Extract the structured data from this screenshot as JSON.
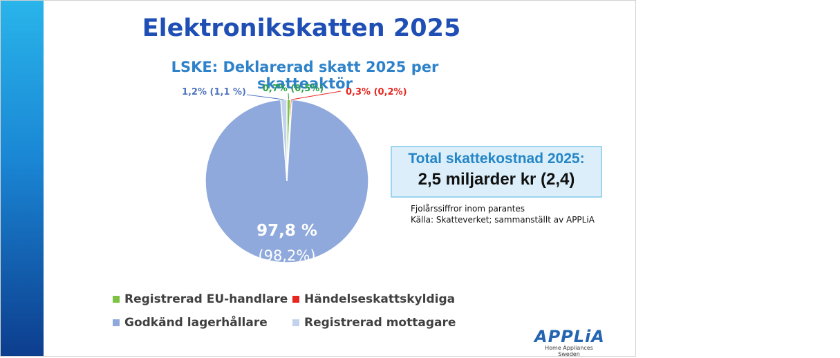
{
  "slide": {
    "title": "Elektronikskatten 2025",
    "total_box": {
      "label": "Total skattekostnad 2025:",
      "value": "2,5 miljarder kr (2,4)"
    },
    "notes": [
      "Fjolårssiffror inom parantes",
      "Källa: Skatteverket; sammanställt av APPLiA"
    ],
    "logo": {
      "text": "APPLiA",
      "subtext": "Home Appliances Sweden"
    }
  },
  "chart_data": {
    "type": "pie",
    "title": "LSKE: Deklarerad skatt 2025 per skatteaktör",
    "legend_position": "bottom",
    "slices": [
      {
        "name": "Registrerad EU-handlare",
        "value": 0.7,
        "previous": 0.5,
        "label": "0,7% (0,5%)",
        "color": "#7dc242",
        "label_color": "#2ca048"
      },
      {
        "name": "Händelseskattskyldiga",
        "value": 0.3,
        "previous": 0.2,
        "label": "0,3% (0,2%)",
        "color": "#e8261f",
        "label_color": "#e8261f"
      },
      {
        "name": "Godkänd lagerhållare",
        "value": 97.8,
        "previous": 98.2,
        "label": "97,8 %",
        "sub_label": "(98,2%)",
        "color": "#8fa9dc",
        "label_color": "#ffffff"
      },
      {
        "name": "Registrerad mottagare",
        "value": 1.2,
        "previous": 1.1,
        "label": "1,2% (1,1 %)",
        "color": "#c3d2ec",
        "label_color": "#4f75bd"
      }
    ]
  }
}
